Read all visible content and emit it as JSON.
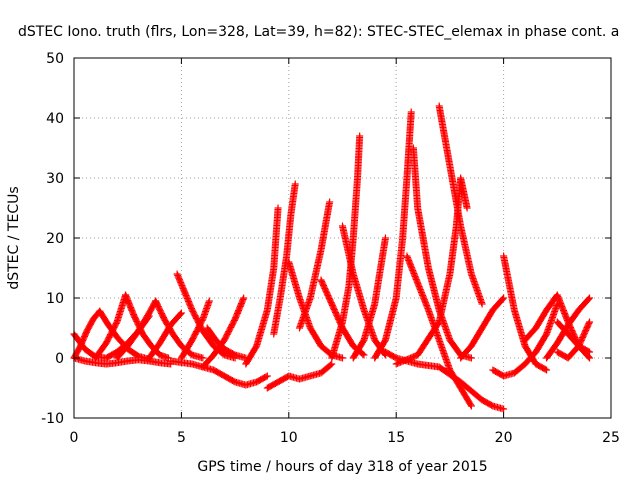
{
  "chart_data": {
    "type": "scatter",
    "title": "dSTEC Iono. truth (flrs, Lon=328, Lat=39, h=82): STEC-STEC_elemax in phase cont. a",
    "xlabel": "GPS time / hours of day 318 of year 2015",
    "ylabel": "dSTEC  / TECUs",
    "xlim": [
      0,
      25
    ],
    "ylim": [
      -10,
      50
    ],
    "xticks": [
      "0",
      "5",
      "10",
      "15",
      "20",
      "25"
    ],
    "yticks": [
      "-10",
      "0",
      "10",
      "20",
      "30",
      "40",
      "50"
    ],
    "grid": true,
    "marker": "+",
    "color": "#ff0000",
    "series": [
      {
        "x": [
          0.0,
          0.5,
          1.0,
          1.5,
          2.0,
          2.5,
          3.0,
          3.5
        ],
        "y": [
          4.0,
          1.5,
          0.2,
          0.0,
          1.0,
          2.5,
          4.5,
          7.0
        ]
      },
      {
        "x": [
          0.0,
          0.3,
          0.6,
          0.9,
          1.2
        ],
        "y": [
          0.0,
          2.0,
          4.5,
          6.5,
          7.8
        ]
      },
      {
        "x": [
          1.2,
          1.6,
          2.0,
          2.5,
          3.0,
          3.5
        ],
        "y": [
          7.8,
          5.5,
          3.5,
          1.5,
          0.3,
          -0.2
        ]
      },
      {
        "x": [
          0.0,
          0.5,
          1.0,
          1.5,
          2.0,
          2.5,
          3.0,
          3.5,
          4.0,
          4.5
        ],
        "y": [
          0.0,
          -0.5,
          -0.8,
          -1.0,
          -0.8,
          -0.5,
          -0.3,
          -0.5,
          -0.8,
          -1.0
        ]
      },
      {
        "x": [
          1.0,
          1.5,
          2.0,
          2.4
        ],
        "y": [
          0.0,
          2.5,
          6.0,
          10.5
        ]
      },
      {
        "x": [
          2.4,
          2.8,
          3.2,
          3.6,
          4.0,
          4.4
        ],
        "y": [
          10.5,
          7.0,
          4.0,
          2.0,
          0.5,
          0.0
        ]
      },
      {
        "x": [
          2.0,
          2.5,
          3.0,
          3.5,
          3.8
        ],
        "y": [
          0.0,
          2.0,
          4.5,
          7.5,
          9.5
        ]
      },
      {
        "x": [
          3.8,
          4.2,
          4.6,
          5.0,
          5.5,
          6.0
        ],
        "y": [
          9.5,
          6.5,
          4.0,
          2.0,
          0.5,
          0.0
        ]
      },
      {
        "x": [
          3.5,
          4.0,
          4.5,
          5.0
        ],
        "y": [
          0.0,
          2.5,
          5.5,
          7.5
        ]
      },
      {
        "x": [
          4.8,
          5.5,
          6.0,
          6.5,
          7.0,
          7.5
        ],
        "y": [
          14.0,
          8.0,
          4.5,
          2.0,
          0.5,
          0.0
        ]
      },
      {
        "x": [
          5.0,
          5.5,
          6.0,
          6.3
        ],
        "y": [
          0.0,
          3.0,
          6.5,
          9.5
        ]
      },
      {
        "x": [
          6.2,
          6.6,
          7.0,
          7.5,
          8.0
        ],
        "y": [
          5.0,
          3.0,
          1.5,
          0.5,
          0.0
        ]
      },
      {
        "x": [
          4.5,
          5.5,
          6.5,
          7.0,
          7.5,
          8.0,
          8.5,
          9.0
        ],
        "y": [
          -0.5,
          -1.0,
          -2.0,
          -3.0,
          -4.0,
          -4.5,
          -4.0,
          -3.0
        ]
      },
      {
        "x": [
          6.0,
          6.5,
          7.0,
          7.5,
          7.9
        ],
        "y": [
          -1.5,
          0.5,
          3.0,
          6.5,
          10.0
        ]
      },
      {
        "x": [
          8.0,
          8.5,
          9.0,
          9.3,
          9.5
        ],
        "y": [
          -1.0,
          2.0,
          8.0,
          15.0,
          25.0
        ]
      },
      {
        "x": [
          9.0,
          9.5,
          10.0,
          10.5,
          11.0,
          11.5,
          12.0
        ],
        "y": [
          -5.0,
          -4.0,
          -3.0,
          -3.5,
          -3.0,
          -2.5,
          -1.0
        ]
      },
      {
        "x": [
          9.3,
          9.6,
          9.9,
          10.1,
          10.3
        ],
        "y": [
          4.0,
          10.0,
          17.0,
          24.0,
          29.0
        ]
      },
      {
        "x": [
          10.0,
          10.5,
          11.0,
          11.5,
          12.0,
          12.5
        ],
        "y": [
          16.0,
          10.0,
          5.0,
          2.0,
          0.5,
          0.0
        ]
      },
      {
        "x": [
          10.5,
          11.0,
          11.5,
          11.9
        ],
        "y": [
          5.0,
          10.0,
          18.0,
          26.0
        ]
      },
      {
        "x": [
          11.5,
          12.0,
          12.5,
          13.0,
          13.5
        ],
        "y": [
          13.0,
          9.0,
          5.0,
          2.0,
          0.5
        ]
      },
      {
        "x": [
          12.0,
          12.5,
          12.8,
          13.0,
          13.2,
          13.3
        ],
        "y": [
          0.0,
          6.0,
          12.0,
          20.0,
          30.0,
          37.0
        ]
      },
      {
        "x": [
          12.5,
          13.0,
          13.5,
          14.0,
          14.5
        ],
        "y": [
          22.0,
          14.0,
          8.0,
          3.0,
          0.5
        ]
      },
      {
        "x": [
          13.0,
          13.5,
          14.0,
          14.5
        ],
        "y": [
          0.0,
          3.0,
          9.0,
          20.0
        ]
      },
      {
        "x": [
          14.0,
          14.5,
          15.0,
          15.3,
          15.5,
          15.7
        ],
        "y": [
          0.0,
          3.0,
          10.0,
          20.0,
          30.0,
          41.0
        ]
      },
      {
        "x": [
          15.8,
          16.0,
          16.5,
          17.0,
          17.5,
          18.0,
          18.5
        ],
        "y": [
          35.0,
          25.0,
          15.0,
          8.0,
          3.0,
          0.5,
          0.0
        ]
      },
      {
        "x": [
          15.0,
          16.0,
          17.0,
          17.5,
          17.8,
          18.0,
          18.3
        ],
        "y": [
          -1.0,
          0.5,
          6.0,
          14.0,
          22.0,
          30.0,
          25.0
        ]
      },
      {
        "x": [
          17.0,
          17.5,
          18.0,
          18.5,
          19.0
        ],
        "y": [
          42.0,
          32.0,
          22.0,
          14.0,
          9.0
        ]
      },
      {
        "x": [
          15.5,
          16.5,
          17.5,
          18.5
        ],
        "y": [
          17.0,
          8.0,
          -2.0,
          -8.0
        ]
      },
      {
        "x": [
          14.5,
          15.0,
          16.0,
          17.0,
          18.0,
          19.0,
          19.5,
          20.0
        ],
        "y": [
          1.0,
          0.0,
          -1.0,
          -1.5,
          -4.0,
          -7.0,
          -8.0,
          -8.5
        ]
      },
      {
        "x": [
          18.0,
          18.5,
          19.0,
          19.5,
          20.0
        ],
        "y": [
          0.0,
          2.0,
          5.0,
          8.0,
          10.0
        ]
      },
      {
        "x": [
          20.0,
          20.5,
          21.0,
          21.5,
          22.0
        ],
        "y": [
          17.0,
          8.0,
          2.0,
          -1.0,
          -2.0
        ]
      },
      {
        "x": [
          19.5,
          20.0,
          20.5,
          21.0,
          21.5,
          22.0,
          22.5
        ],
        "y": [
          -2.0,
          -3.0,
          -2.5,
          -1.0,
          1.0,
          4.0,
          9.0
        ]
      },
      {
        "x": [
          21.0,
          21.5,
          22.0,
          22.5,
          23.0,
          23.5,
          24.0
        ],
        "y": [
          3.0,
          5.0,
          8.0,
          10.5,
          6.0,
          2.0,
          0.0
        ]
      },
      {
        "x": [
          22.0,
          22.5,
          23.0,
          23.5,
          24.0
        ],
        "y": [
          0.0,
          2.5,
          5.5,
          8.0,
          10.0
        ]
      },
      {
        "x": [
          22.5,
          23.0,
          23.5,
          24.0
        ],
        "y": [
          6.0,
          4.0,
          2.0,
          1.0
        ]
      },
      {
        "x": [
          22.5,
          23.0,
          23.5,
          24.0
        ],
        "y": [
          1.0,
          0.0,
          2.0,
          6.0
        ]
      }
    ]
  }
}
